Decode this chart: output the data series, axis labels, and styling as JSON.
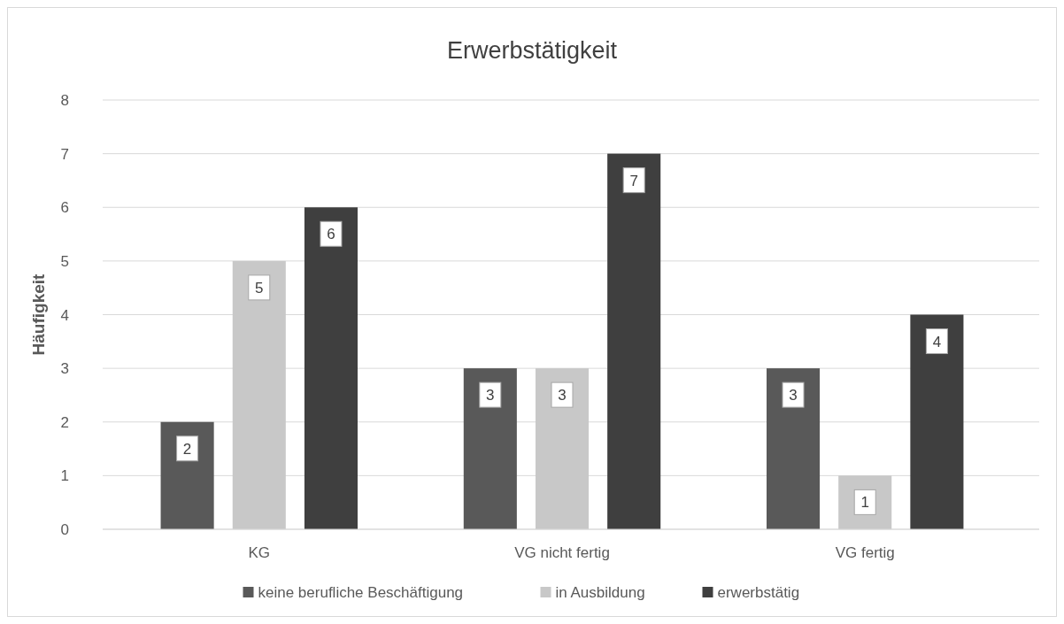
{
  "chart_data": {
    "type": "bar",
    "title": "Erwerbstätigkeit",
    "ylabel": "Häufigkeit",
    "categories": [
      "KG",
      "VG nicht fertig",
      "VG fertig"
    ],
    "series": [
      {
        "name": "keine berufliche Beschäftigung",
        "color": "#595959",
        "values": [
          2,
          3,
          3
        ]
      },
      {
        "name": "in Ausbildung",
        "color": "#c8c8c8",
        "values": [
          5,
          3,
          1
        ]
      },
      {
        "name": "erwerbstätig",
        "color": "#3f3f3f",
        "values": [
          6,
          7,
          4
        ]
      }
    ],
    "ylim": [
      0,
      8
    ],
    "yticks": [
      0,
      1,
      2,
      3,
      4,
      5,
      6,
      7,
      8
    ],
    "grid": "y",
    "legend": "bottom",
    "data_labels": true
  }
}
